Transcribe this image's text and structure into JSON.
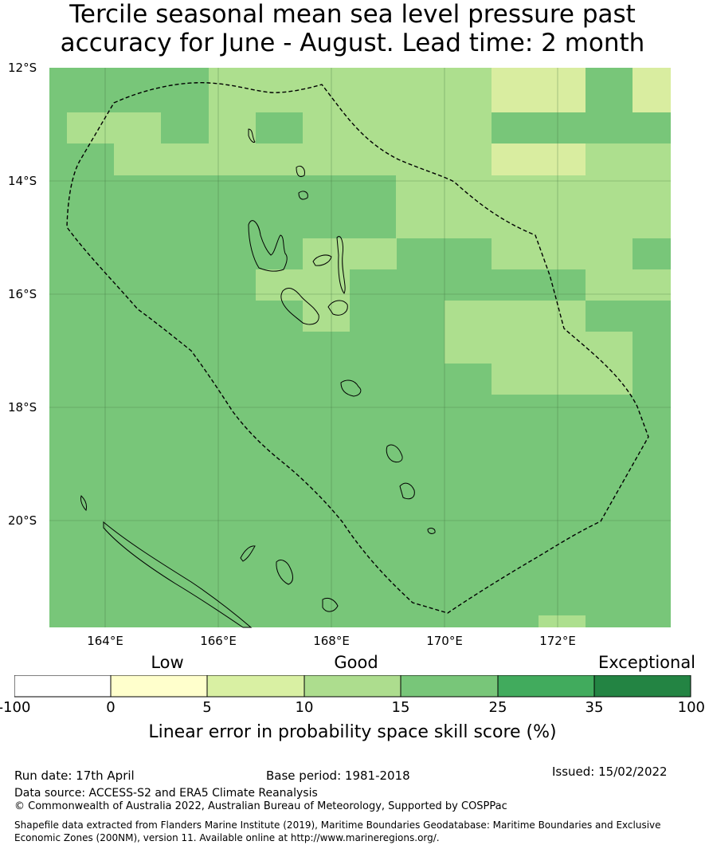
{
  "title": {
    "line1": "Tercile seasonal mean sea level pressure past",
    "line2": "accuracy for June - August. Lead time: 2 month"
  },
  "map": {
    "lat_labels": [
      "12°S",
      "14°S",
      "16°S",
      "18°S",
      "20°S"
    ],
    "lon_labels": [
      "164°E",
      "166°E",
      "168°E",
      "170°E",
      "172°E"
    ],
    "lat_range": [
      -21.9,
      -12.0
    ],
    "lon_range": [
      163.0,
      174.0
    ],
    "grid": true,
    "eez_boundary_style": "dashed",
    "skill_colors": {
      "5-10": "#d9eda0",
      "10-15": "#addf8e",
      "15-25": "#78c679"
    }
  },
  "colorbar": {
    "categories": [
      "Low",
      "Good",
      "Exceptional"
    ],
    "ticks": [
      "-100",
      "0",
      "5",
      "10",
      "15",
      "25",
      "35",
      "100"
    ],
    "colors": [
      "#ffffff",
      "#ffffcc",
      "#d9f0a3",
      "#addd8e",
      "#78c679",
      "#41ab5d",
      "#238443"
    ],
    "label": "Linear error in probability space skill score (%)"
  },
  "footer": {
    "run_date": "Run date: 17th April",
    "base_period": "Base period: 1981-2018",
    "issued": "Issued: 15/02/2022",
    "data_source": "Data source: ACCESS-S2 and ERA5 Climate Reanalysis",
    "copyright": "© Commonwealth of Australia 2022, Australian Bureau of Meteorology, Supported by COSPPac",
    "shapefile": "Shapefile data extracted from Flanders Marine Institute (2019), Maritime Boundaries Geodatabase: Maritime Boundaries and Exclusive Economic Zones (200NM), version 11. Available online at http://www.marineregions.org/."
  }
}
